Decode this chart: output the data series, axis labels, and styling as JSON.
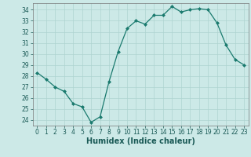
{
  "x": [
    0,
    1,
    2,
    3,
    4,
    5,
    6,
    7,
    8,
    9,
    10,
    11,
    12,
    13,
    14,
    15,
    16,
    17,
    18,
    19,
    20,
    21,
    22,
    23
  ],
  "y": [
    28.3,
    27.7,
    27.0,
    26.6,
    25.5,
    25.2,
    23.8,
    24.3,
    27.5,
    30.2,
    32.3,
    33.0,
    32.7,
    33.5,
    33.5,
    34.3,
    33.8,
    34.0,
    34.1,
    34.0,
    32.8,
    30.8,
    29.5,
    29.0
  ],
  "line_color": "#1a7a6e",
  "marker": "D",
  "marker_size": 2.0,
  "line_width": 0.9,
  "xlabel": "Humidex (Indice chaleur)",
  "ylim": [
    23.5,
    34.6
  ],
  "xlim": [
    -0.5,
    23.5
  ],
  "yticks": [
    24,
    25,
    26,
    27,
    28,
    29,
    30,
    31,
    32,
    33,
    34
  ],
  "xticks": [
    0,
    1,
    2,
    3,
    4,
    5,
    6,
    7,
    8,
    9,
    10,
    11,
    12,
    13,
    14,
    15,
    16,
    17,
    18,
    19,
    20,
    21,
    22,
    23
  ],
  "bg_color": "#cce9e7",
  "grid_color": "#aed4d1",
  "tick_fontsize": 5.5,
  "xlabel_fontsize": 7.0
}
